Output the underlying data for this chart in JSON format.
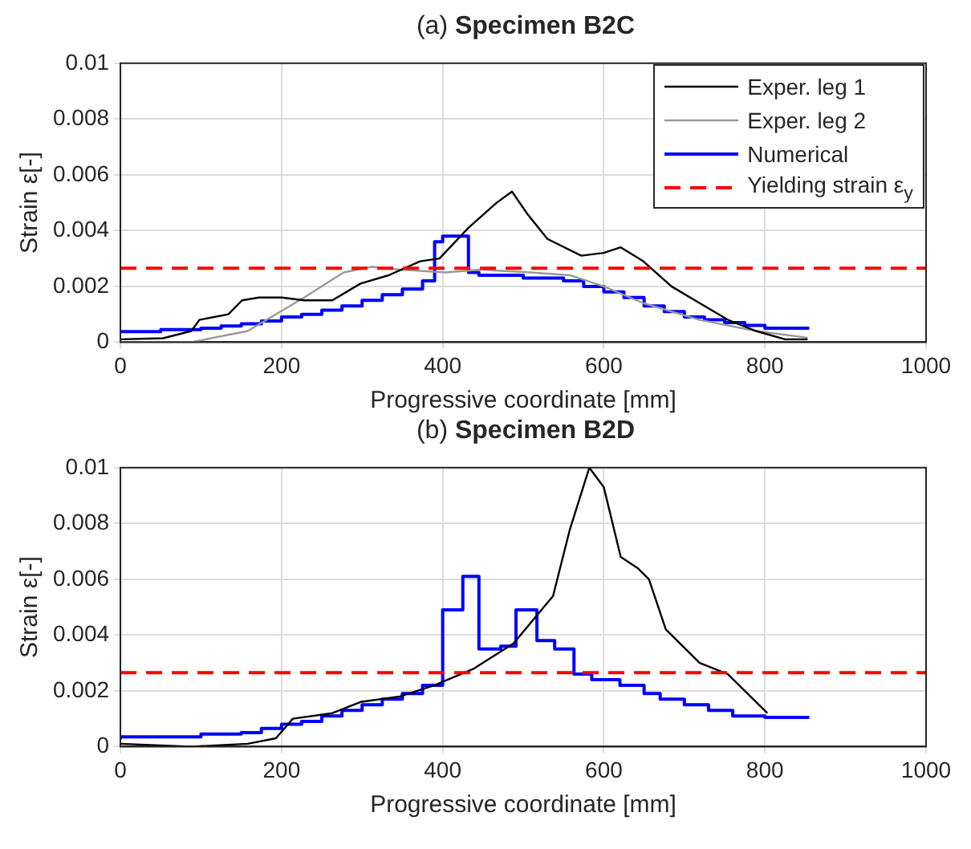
{
  "chart_data": [
    {
      "type": "line",
      "title": "(a) Specimen B2C",
      "xlabel": "Progressive coordinate [mm]",
      "ylabel": "Strain ε[-]",
      "xlim": [
        0,
        1000
      ],
      "xticks": [
        0,
        200,
        400,
        600,
        800,
        1000
      ],
      "ylim": [
        0,
        0.01
      ],
      "yticks": [
        0,
        0.002,
        0.004,
        0.006,
        0.008,
        0.01
      ],
      "grid": true,
      "legend": "top right",
      "line_style": "solid",
      "marker": "none",
      "ref_lines": [
        {
          "axis": "y",
          "value": 0.00265,
          "label": "Yielding strain ε$_{y}$",
          "color": "#ff0000",
          "line_style": "dashed"
        }
      ],
      "series": [
        {
          "name": "Exper. leg 1",
          "color": "#000000",
          "x": [
            0,
            53,
            88,
            98,
            134,
            151,
            172,
            200,
            228,
            263,
            298,
            333,
            372,
            396,
            432,
            467,
            486,
            505,
            530,
            572,
            600,
            621,
            649,
            684,
            719,
            754,
            789,
            825,
            853
          ],
          "values": [
            0.0001,
            0.00014,
            0.0004,
            0.0008,
            0.001,
            0.0015,
            0.0016,
            0.0016,
            0.0015,
            0.0015,
            0.0021,
            0.0024,
            0.0029,
            0.003,
            0.0041,
            0.005,
            0.0054,
            0.0046,
            0.0037,
            0.0031,
            0.0032,
            0.0034,
            0.0029,
            0.002,
            0.0014,
            0.0008,
            0.0004,
            0.0001,
            0.0001
          ]
        },
        {
          "name": "Exper. leg 2",
          "color": "#999999",
          "x": [
            0,
            88,
            158,
            228,
            277,
            312,
            347,
            404,
            446,
            509,
            558,
            600,
            649,
            719,
            789,
            853
          ],
          "values": [
            0,
            0,
            0.0004,
            0.0016,
            0.0025,
            0.0027,
            0.0026,
            0.0025,
            0.0026,
            0.0025,
            0.0024,
            0.002,
            0.0014,
            0.0008,
            0.0004,
            0.00016
          ]
        },
        {
          "name": "Numerical",
          "type": "step",
          "color": "#0000ff",
          "x": [
            0,
            50,
            100,
            125,
            150,
            175,
            200,
            225,
            250,
            275,
            300,
            325,
            350,
            375,
            390,
            400,
            432,
            445,
            500,
            550,
            575,
            600,
            625,
            650,
            675,
            700,
            725,
            750,
            775,
            800,
            855
          ],
          "values": [
            0.00033,
            0.00038,
            0.00045,
            0.0005,
            0.00058,
            0.00066,
            0.00076,
            0.0009,
            0.001,
            0.00115,
            0.0013,
            0.0015,
            0.0017,
            0.0019,
            0.0022,
            0.0036,
            0.0038,
            0.0025,
            0.0024,
            0.0023,
            0.0022,
            0.002,
            0.0018,
            0.0016,
            0.0013,
            0.0011,
            0.0009,
            0.0008,
            0.0007,
            0.0006,
            0.0005
          ]
        }
      ]
    },
    {
      "type": "line",
      "title": "(b) Specimen B2D",
      "xlabel": "Progressive coordinate [mm]",
      "ylabel": "Strain ε[-]",
      "xlim": [
        0,
        1000
      ],
      "xticks": [
        0,
        200,
        400,
        600,
        800,
        1000
      ],
      "ylim": [
        0,
        0.01
      ],
      "yticks": [
        0,
        0.002,
        0.004,
        0.006,
        0.008,
        0.01
      ],
      "grid": true,
      "line_style": "solid",
      "marker": "none",
      "ref_lines": [
        {
          "axis": "y",
          "value": 0.00265,
          "color": "#ff0000",
          "line_style": "dashed"
        }
      ],
      "series": [
        {
          "color": "#000000",
          "x": [
            0,
            88,
            158,
            193,
            214,
            263,
            298,
            347,
            390,
            439,
            488,
            537,
            558,
            582,
            600,
            621,
            642,
            656,
            677,
            719,
            754,
            782,
            803
          ],
          "values": [
            0.0001,
            0,
            0.0001,
            0.0003,
            0.001,
            0.0012,
            0.0016,
            0.0018,
            0.0022,
            0.0028,
            0.0037,
            0.0054,
            0.0078,
            0.01,
            0.0093,
            0.0068,
            0.0064,
            0.006,
            0.0042,
            0.003,
            0.0026,
            0.0018,
            0.0012
          ]
        },
        {
          "type": "step",
          "color": "#0000ff",
          "x": [
            0,
            100,
            150,
            175,
            200,
            225,
            250,
            275,
            300,
            325,
            350,
            375,
            400,
            425,
            445,
            472,
            491,
            517,
            539,
            563,
            585,
            620,
            650,
            670,
            700,
            730,
            760,
            800,
            855
          ],
          "values": [
            0.00026,
            0.00035,
            0.00045,
            0.0005,
            0.00065,
            0.0008,
            0.0009,
            0.0011,
            0.0013,
            0.0015,
            0.0017,
            0.0019,
            0.0022,
            0.0049,
            0.0061,
            0.0035,
            0.0036,
            0.0049,
            0.0038,
            0.0035,
            0.0026,
            0.0024,
            0.0022,
            0.0019,
            0.0017,
            0.0015,
            0.0013,
            0.0011,
            0.00105
          ]
        }
      ]
    }
  ]
}
